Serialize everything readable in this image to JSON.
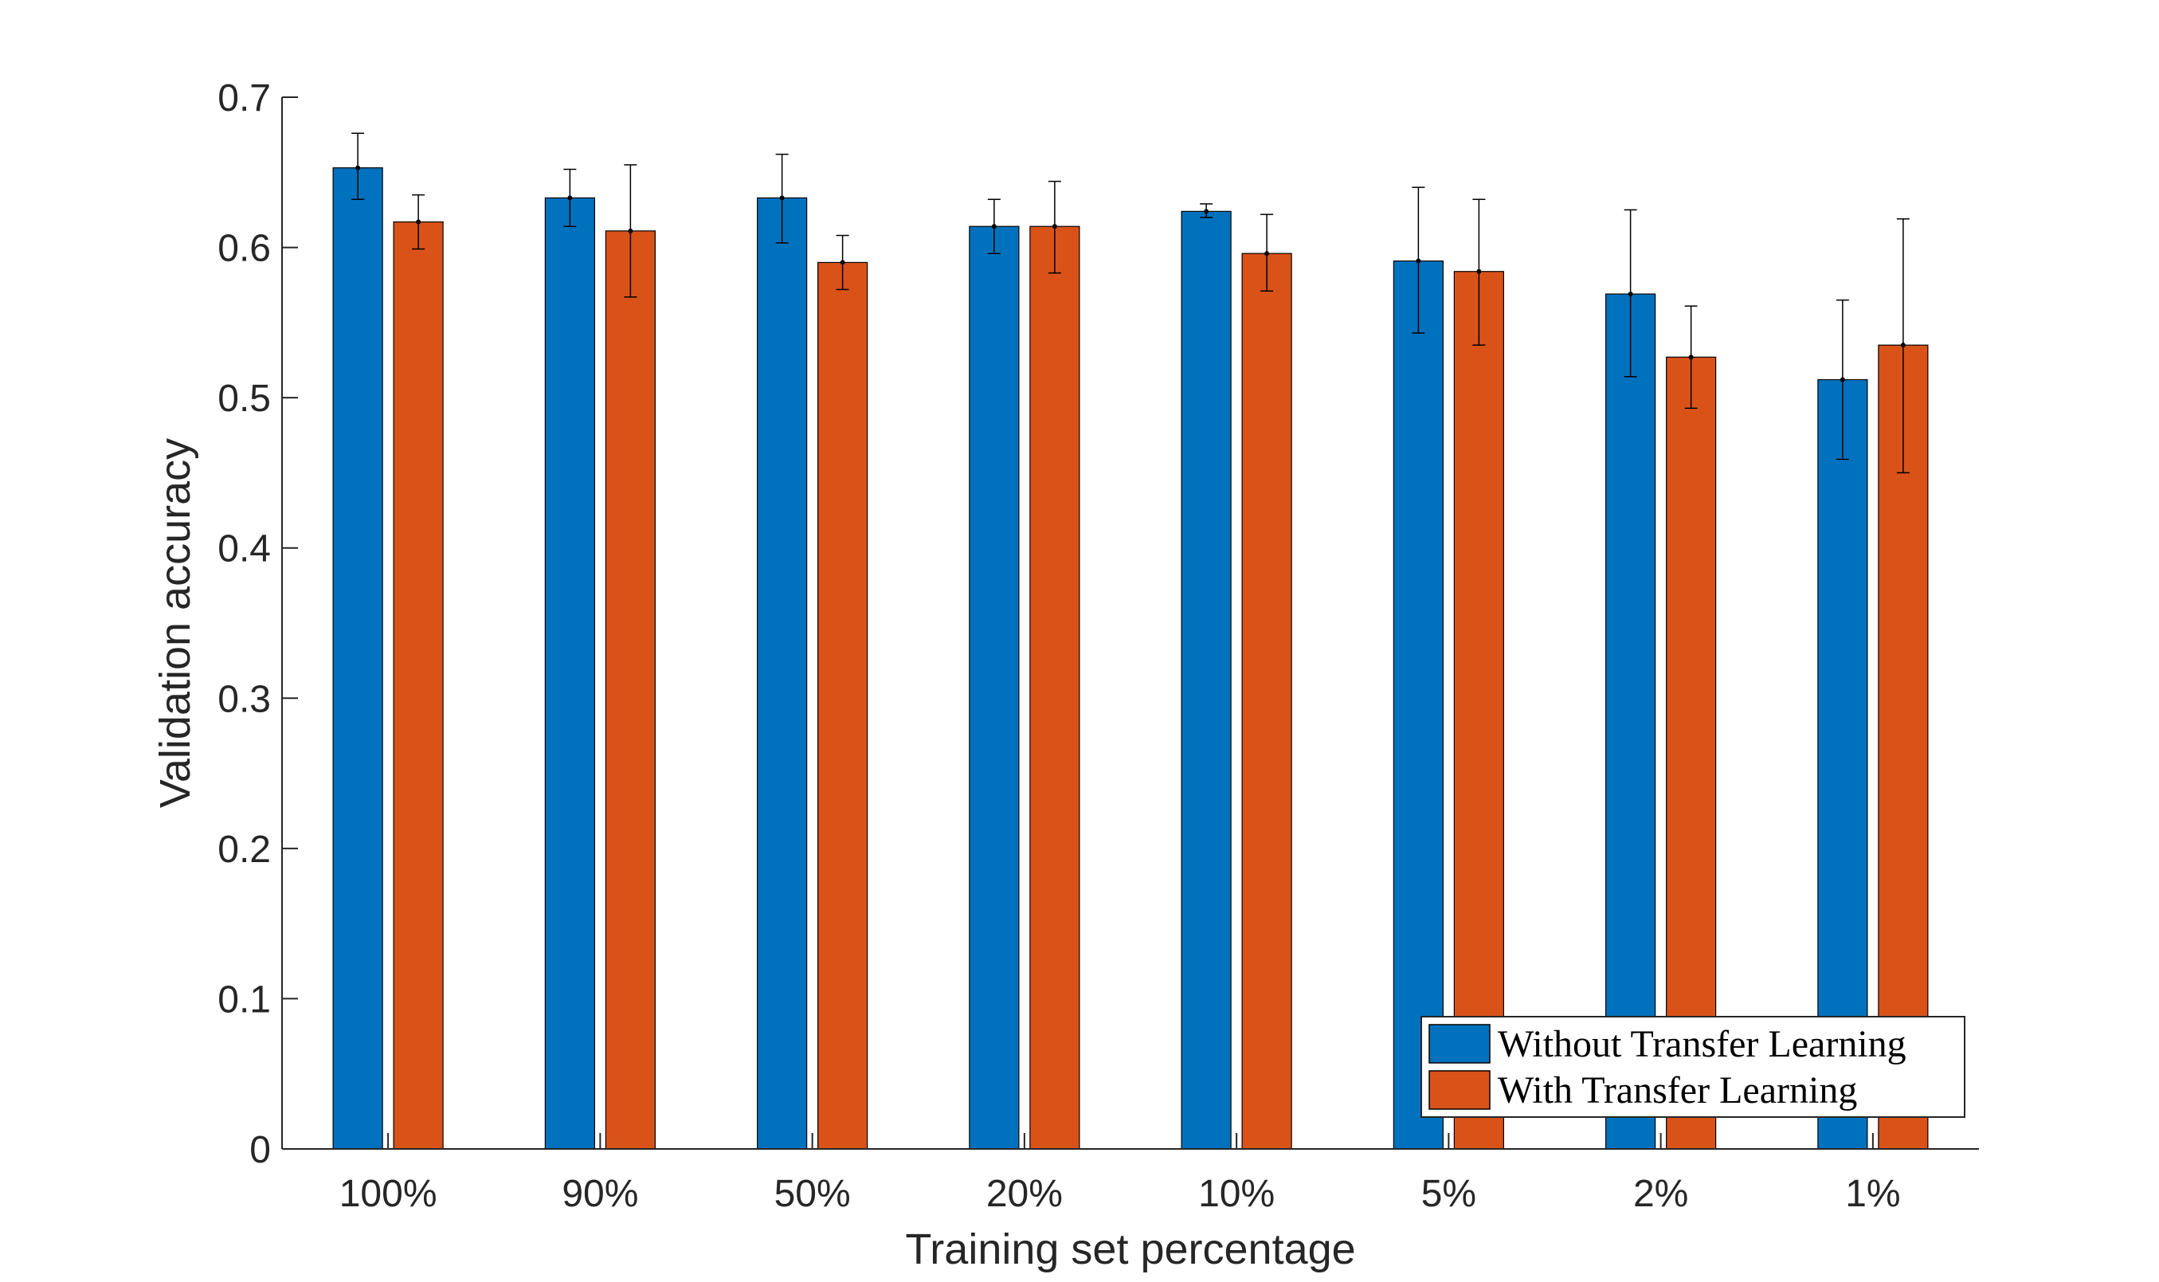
{
  "chart_data": {
    "type": "bar",
    "title": "",
    "xlabel": "Training set percentage",
    "ylabel": "Validation accuracy",
    "ylim": [
      0,
      0.7
    ],
    "yticks": [
      0,
      0.1,
      0.2,
      0.3,
      0.4,
      0.5,
      0.6,
      0.7
    ],
    "ytick_labels": [
      "0",
      "0.1",
      "0.2",
      "0.3",
      "0.4",
      "0.5",
      "0.6",
      "0.7"
    ],
    "categories": [
      "100%",
      "90%",
      "50%",
      "20%",
      "10%",
      "5%",
      "2%",
      "1%"
    ],
    "grid": false,
    "legend_position": "bottom-right",
    "series": [
      {
        "name": "Without Transfer Learning",
        "color": "#0072BD",
        "values": [
          0.653,
          0.633,
          0.633,
          0.614,
          0.624,
          0.591,
          0.569,
          0.512
        ],
        "err_low": [
          0.632,
          0.614,
          0.603,
          0.596,
          0.62,
          0.543,
          0.514,
          0.459
        ],
        "err_high": [
          0.676,
          0.652,
          0.662,
          0.632,
          0.629,
          0.64,
          0.625,
          0.565
        ]
      },
      {
        "name": "With Transfer Learning",
        "color": "#D95319",
        "values": [
          0.617,
          0.611,
          0.59,
          0.614,
          0.596,
          0.584,
          0.527,
          0.535
        ],
        "err_low": [
          0.599,
          0.567,
          0.572,
          0.583,
          0.571,
          0.535,
          0.493,
          0.45
        ],
        "err_high": [
          0.635,
          0.655,
          0.608,
          0.644,
          0.622,
          0.632,
          0.561,
          0.619
        ]
      }
    ]
  }
}
